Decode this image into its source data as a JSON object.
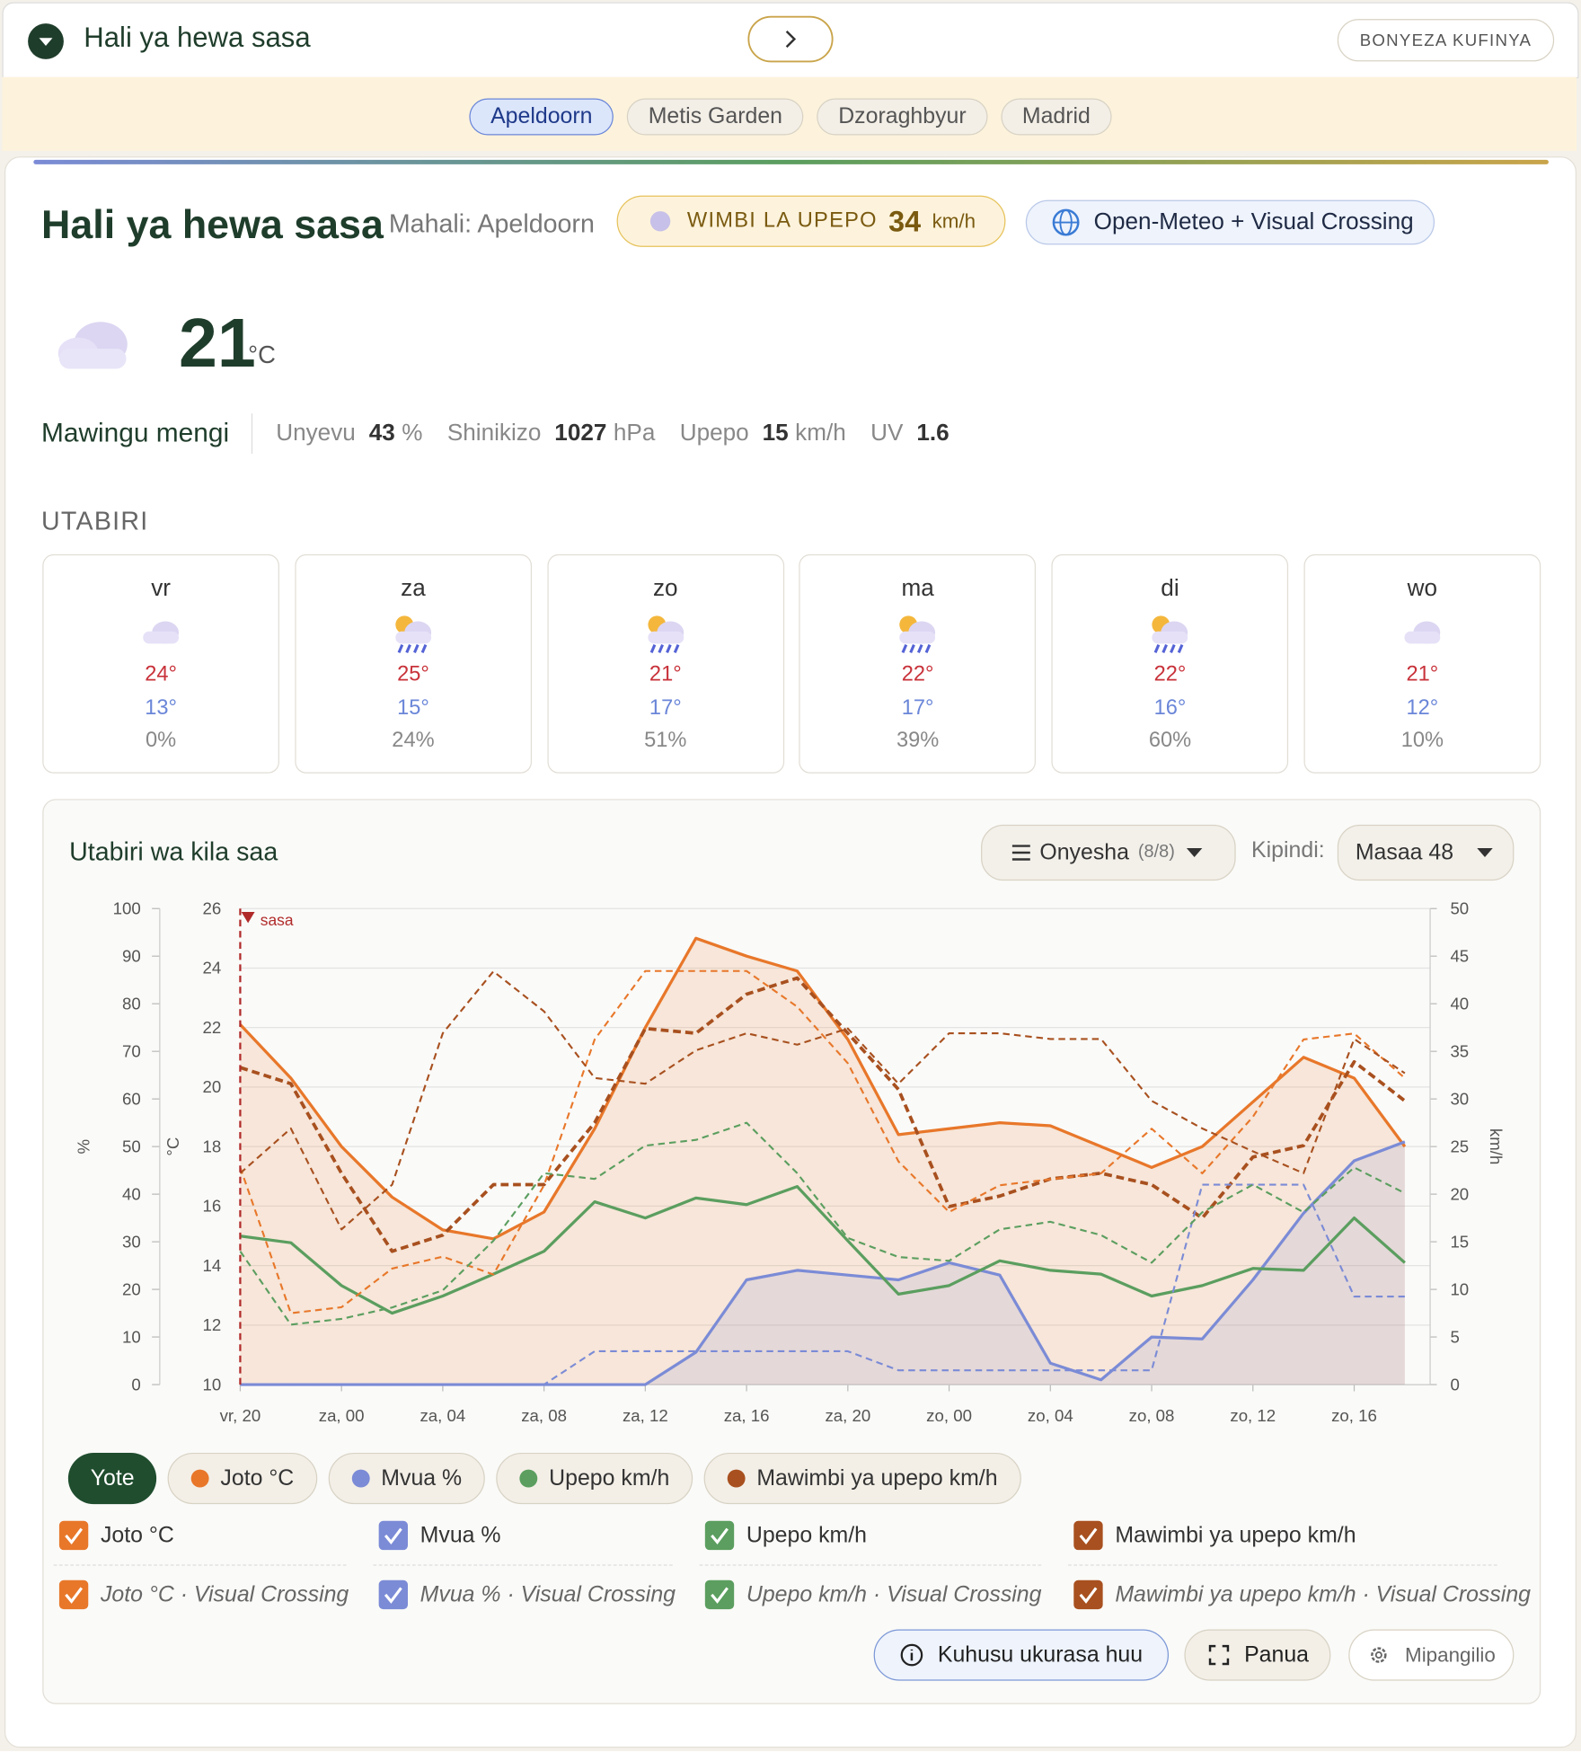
{
  "header": {
    "title": "Hali ya hewa sasa",
    "menu_button": "BONYEZA KUFINYA"
  },
  "tabs": [
    "Apeldoorn",
    "Metis Garden",
    "Dzoraghbyur",
    "Madrid"
  ],
  "current": {
    "title": "Hali ya hewa sasa",
    "location": "Mahali: Apeldoorn",
    "gust_badge": {
      "label": "WIMBI LA UPEPO",
      "value": 34,
      "unit": "km/h"
    },
    "source": "Open-Meteo + Visual Crossing",
    "temperature": 21,
    "unit": "°C",
    "condition": "Mawingu mengi",
    "stats": [
      {
        "label": "Unyevu",
        "value": 43,
        "unit": "%"
      },
      {
        "label": "Shinikizo",
        "value": 1027,
        "unit": "hPa"
      },
      {
        "label": "Upepo",
        "value": 15,
        "unit": "km/h"
      },
      {
        "label": "UV",
        "value": 1.6
      }
    ]
  },
  "forecast": {
    "title": "UTABIRI",
    "days": [
      {
        "day": "vr",
        "high": "24°",
        "low": "13°",
        "precip": "0%"
      },
      {
        "day": "za",
        "high": "25°",
        "low": "15°",
        "precip": "24%"
      },
      {
        "day": "zo",
        "high": "21°",
        "low": "17°",
        "precip": "51%"
      },
      {
        "day": "ma",
        "high": "22°",
        "low": "17°",
        "precip": "39%"
      },
      {
        "day": "di",
        "high": "22°",
        "low": "16°",
        "precip": "60%"
      },
      {
        "day": "wo",
        "high": "21°",
        "low": "12°",
        "precip": "10%"
      }
    ]
  },
  "hourly": {
    "title": "Utabiri wa kila saa",
    "show_button": "Onyesha",
    "show_count": "(8/8)",
    "period_label": "Kipindi:",
    "period": "Masaa 48",
    "all_filter": "Yote",
    "buttons": [
      "Kuhusu ukurasa huu",
      "Panua",
      "Mipangilio"
    ],
    "chart_data": {
      "type": "line",
      "ylabel": "%",
      "y2label": "°C",
      "y3label": "km/h",
      "annotation": {
        "text": "sasa",
        "x": 0
      },
      "x": [
        0,
        2,
        4,
        6,
        8,
        10,
        12,
        14,
        16,
        18,
        20,
        22,
        24,
        26,
        28,
        30,
        32,
        34,
        36,
        38,
        40,
        42,
        44,
        46
      ],
      "xlim": [
        0,
        47
      ],
      "xticks": [
        {
          "value": 0,
          "label": "vr, 20"
        },
        {
          "value": 4,
          "label": "za, 00"
        },
        {
          "value": 8,
          "label": "za, 04"
        },
        {
          "value": 12,
          "label": "za, 08"
        },
        {
          "value": 16,
          "label": "za, 12"
        },
        {
          "value": 20,
          "label": "za, 16"
        },
        {
          "value": 24,
          "label": "za, 20"
        },
        {
          "value": 28,
          "label": "zo, 00"
        },
        {
          "value": 32,
          "label": "zo, 04"
        },
        {
          "value": 36,
          "label": "zo, 08"
        },
        {
          "value": 40,
          "label": "zo, 12"
        },
        {
          "value": 44,
          "label": "zo, 16"
        }
      ],
      "ylim": [
        0,
        100
      ],
      "yticks": [
        0,
        10,
        20,
        30,
        40,
        50,
        60,
        70,
        80,
        90,
        100
      ],
      "y2lim": [
        10,
        26
      ],
      "y2ticks": [
        10,
        12,
        14,
        16,
        18,
        20,
        22,
        24,
        26
      ],
      "y3lim": [
        0,
        50
      ],
      "y3ticks": [
        0,
        5,
        10,
        15,
        20,
        25,
        30,
        35,
        40,
        45,
        50
      ],
      "grid": "y2",
      "series": [
        {
          "name": "Joto °C",
          "color": "#e8772a",
          "axis": "y2",
          "line_style": "solid",
          "fill": true,
          "values": [
            22.1,
            20.3,
            18.0,
            16.3,
            15.2,
            14.9,
            15.8,
            18.6,
            22.0,
            25.0,
            24.4,
            23.9,
            21.6,
            18.4,
            18.6,
            18.8,
            18.7,
            18.0,
            17.3,
            18.0,
            19.5,
            21.0,
            20.3,
            18.0
          ]
        },
        {
          "name": "Mvua %",
          "color": "#7b8bd6",
          "axis": "y",
          "line_style": "solid",
          "fill": true,
          "values": [
            0,
            0,
            0,
            0,
            0,
            0,
            0,
            0,
            0,
            6.8,
            22,
            24,
            23,
            22,
            25.6,
            23,
            4.5,
            1,
            10,
            9.6,
            22,
            36,
            47,
            51
          ]
        },
        {
          "name": "Upepo km/h",
          "color": "#5b9e5f",
          "axis": "y3",
          "line_style": "solid",
          "values": [
            15.6,
            14.9,
            10.4,
            7.5,
            9.3,
            11.6,
            14,
            19.2,
            17.5,
            19.6,
            18.9,
            20.8,
            15.1,
            9.5,
            10.4,
            13,
            12,
            11.6,
            9.3,
            10.4,
            12.2,
            12,
            17.5,
            12.8
          ]
        },
        {
          "name": "Mawimbi ya upepo km/h",
          "color": "#a8501f",
          "axis": "y3",
          "line_style": "dashed",
          "values": [
            33.3,
            31.6,
            22.2,
            14,
            15.7,
            21,
            21,
            27.5,
            37.4,
            36.9,
            41,
            42.7,
            36.9,
            31,
            18.7,
            19.8,
            21.6,
            22.2,
            21,
            17.5,
            23.9,
            25.1,
            33.9,
            29.8
          ]
        },
        {
          "name": "Joto °C · Visual Crossing",
          "color": "#e8772a",
          "axis": "y2",
          "line_style": "dashed",
          "values": [
            17.3,
            12.4,
            12.6,
            13.9,
            14.3,
            13.7,
            16.7,
            21.6,
            23.9,
            23.9,
            23.9,
            22.7,
            20.8,
            17.5,
            15.8,
            16.7,
            16.9,
            17.1,
            18.6,
            17.1,
            19.0,
            21.6,
            21.8,
            20.3
          ]
        },
        {
          "name": "Mvua % · Visual Crossing",
          "color": "#7b8bd6",
          "axis": "y",
          "line_style": "dashed",
          "values": [
            0,
            0,
            0,
            0,
            0,
            0,
            0,
            7,
            7,
            7,
            7,
            7,
            7,
            3,
            3,
            3,
            3,
            3,
            3,
            42,
            42,
            42,
            18.5,
            18.5
          ]
        },
        {
          "name": "Upepo km/h · Visual Crossing",
          "color": "#5b9e5f",
          "axis": "y3",
          "line_style": "dashed",
          "values": [
            14,
            6.3,
            6.9,
            8.1,
            9.9,
            15.1,
            22.2,
            21.6,
            25.1,
            25.7,
            27.5,
            22.2,
            15.4,
            13.4,
            13,
            16.3,
            17.1,
            15.7,
            12.8,
            18.1,
            21,
            18.1,
            22.8,
            20.1
          ]
        },
        {
          "name": "Mawimbi ya upepo km/h · Visual Crossing",
          "color": "#a8501f",
          "axis": "y3",
          "line_style": "dashed",
          "values": [
            22.2,
            26.9,
            16.3,
            21,
            36.9,
            43.4,
            39.2,
            32.2,
            31.6,
            35.1,
            36.9,
            35.7,
            37.4,
            31.6,
            36.9,
            36.9,
            36.3,
            36.3,
            29.8,
            26.9,
            24.5,
            22.2,
            36.3,
            32.7
          ]
        }
      ]
    }
  }
}
